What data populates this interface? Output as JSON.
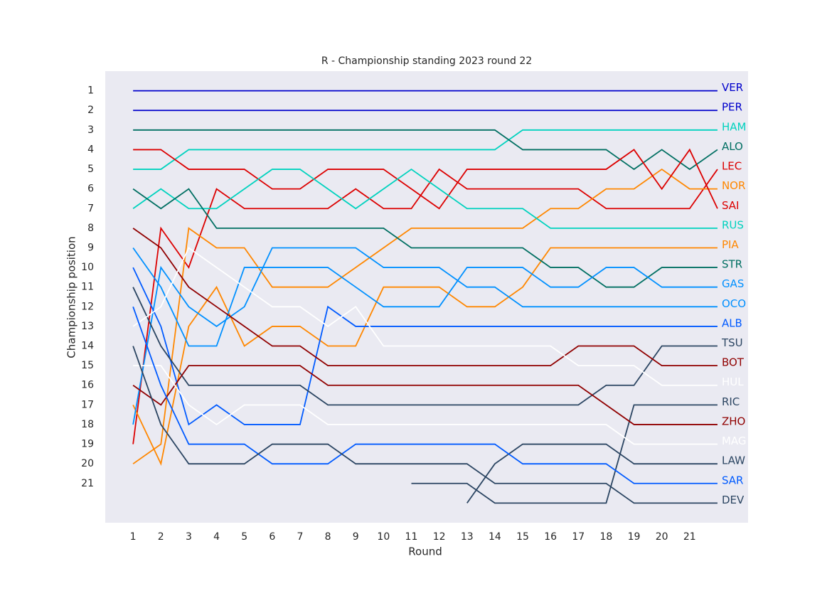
{
  "chart_data": {
    "type": "line",
    "title": "R - Championship standing 2023 round 22",
    "xlabel": "Round",
    "ylabel": "Championship position",
    "x": [
      1,
      2,
      3,
      4,
      5,
      6,
      7,
      8,
      9,
      10,
      11,
      12,
      13,
      14,
      15,
      16,
      17,
      18,
      19,
      20,
      21,
      22
    ],
    "xlim": [
      0,
      23.1
    ],
    "ylim": [
      23,
      0
    ],
    "xticks": [
      1,
      2,
      3,
      4,
      5,
      6,
      7,
      8,
      9,
      10,
      11,
      12,
      13,
      14,
      15,
      16,
      17,
      18,
      19,
      20,
      21
    ],
    "yticks": [
      1,
      2,
      3,
      4,
      5,
      6,
      7,
      8,
      9,
      10,
      11,
      12,
      13,
      14,
      15,
      16,
      17,
      18,
      19,
      20,
      21
    ],
    "grid": false,
    "background": "#eaeaf2",
    "series": [
      {
        "name": "VER",
        "color": "#0000cc",
        "values": [
          1,
          1,
          1,
          1,
          1,
          1,
          1,
          1,
          1,
          1,
          1,
          1,
          1,
          1,
          1,
          1,
          1,
          1,
          1,
          1,
          1,
          1
        ]
      },
      {
        "name": "PER",
        "color": "#0000cc",
        "values": [
          2,
          2,
          2,
          2,
          2,
          2,
          2,
          2,
          2,
          2,
          2,
          2,
          2,
          2,
          2,
          2,
          2,
          2,
          2,
          2,
          2,
          2
        ]
      },
      {
        "name": "HAM",
        "color": "#00d2be",
        "values": [
          5,
          5,
          4,
          4,
          4,
          4,
          4,
          4,
          4,
          4,
          4,
          4,
          4,
          4,
          3,
          3,
          3,
          3,
          3,
          3,
          3,
          3
        ]
      },
      {
        "name": "ALO",
        "color": "#006f62",
        "values": [
          3,
          3,
          3,
          3,
          3,
          3,
          3,
          3,
          3,
          3,
          3,
          3,
          3,
          3,
          4,
          4,
          4,
          4,
          5,
          4,
          5,
          4
        ]
      },
      {
        "name": "LEC",
        "color": "#dc0000",
        "values": [
          19,
          8,
          10,
          6,
          7,
          7,
          7,
          7,
          6,
          7,
          7,
          5,
          6,
          6,
          6,
          6,
          6,
          7,
          7,
          7,
          7,
          5
        ]
      },
      {
        "name": "NOR",
        "color": "#ff8700",
        "values": [
          20,
          19,
          8,
          9,
          9,
          11,
          11,
          11,
          10,
          9,
          8,
          8,
          8,
          8,
          8,
          7,
          7,
          6,
          6,
          5,
          6,
          6
        ]
      },
      {
        "name": "SAI",
        "color": "#dc0000",
        "values": [
          4,
          4,
          5,
          5,
          5,
          6,
          6,
          5,
          5,
          5,
          6,
          7,
          5,
          5,
          5,
          5,
          5,
          5,
          4,
          6,
          4,
          7
        ]
      },
      {
        "name": "RUS",
        "color": "#00d2be",
        "values": [
          7,
          6,
          7,
          7,
          6,
          5,
          5,
          6,
          7,
          6,
          5,
          6,
          7,
          7,
          7,
          8,
          8,
          8,
          8,
          8,
          8,
          8
        ]
      },
      {
        "name": "PIA",
        "color": "#ff8700",
        "values": [
          17,
          20,
          13,
          11,
          14,
          13,
          13,
          14,
          14,
          11,
          11,
          11,
          12,
          12,
          11,
          9,
          9,
          9,
          9,
          9,
          9,
          9
        ]
      },
      {
        "name": "STR",
        "color": "#006f62",
        "values": [
          6,
          7,
          6,
          8,
          8,
          8,
          8,
          8,
          8,
          8,
          9,
          9,
          9,
          9,
          9,
          10,
          10,
          11,
          11,
          10,
          10,
          10
        ]
      },
      {
        "name": "GAS",
        "color": "#0090ff",
        "values": [
          9,
          11,
          14,
          14,
          10,
          10,
          10,
          10,
          11,
          12,
          12,
          12,
          10,
          10,
          10,
          11,
          11,
          10,
          10,
          11,
          11,
          11
        ]
      },
      {
        "name": "OCO",
        "color": "#0090ff",
        "values": [
          18,
          10,
          12,
          13,
          12,
          9,
          9,
          9,
          9,
          10,
          10,
          10,
          11,
          11,
          12,
          12,
          12,
          12,
          12,
          12,
          12,
          12
        ]
      },
      {
        "name": "ALB",
        "color": "#005aff",
        "values": [
          10,
          13,
          18,
          17,
          18,
          18,
          18,
          12,
          13,
          13,
          13,
          13,
          13,
          13,
          13,
          13,
          13,
          13,
          13,
          13,
          13,
          13
        ]
      },
      {
        "name": "TSU",
        "color": "#2b4562",
        "values": [
          11,
          14,
          16,
          16,
          16,
          16,
          16,
          17,
          17,
          17,
          17,
          17,
          17,
          17,
          17,
          17,
          17,
          16,
          16,
          14,
          14,
          14
        ]
      },
      {
        "name": "BOT",
        "color": "#900000",
        "values": [
          8,
          9,
          11,
          12,
          13,
          14,
          14,
          15,
          15,
          15,
          15,
          15,
          15,
          15,
          15,
          15,
          14,
          14,
          14,
          15,
          15,
          15
        ]
      },
      {
        "name": "HUL",
        "color": "#ffffff",
        "values": [
          13,
          12,
          9,
          10,
          11,
          12,
          12,
          13,
          12,
          14,
          14,
          14,
          14,
          14,
          14,
          14,
          15,
          15,
          15,
          16,
          16,
          16
        ]
      },
      {
        "name": "RIC",
        "color": "#2b4562",
        "values": [
          null,
          null,
          null,
          null,
          null,
          null,
          null,
          null,
          null,
          null,
          21,
          21,
          21,
          22,
          22,
          22,
          22,
          22,
          17,
          17,
          17,
          17
        ]
      },
      {
        "name": "ZHO",
        "color": "#900000",
        "values": [
          16,
          17,
          15,
          15,
          15,
          15,
          15,
          16,
          16,
          16,
          16,
          16,
          16,
          16,
          16,
          16,
          16,
          17,
          18,
          18,
          18,
          18
        ]
      },
      {
        "name": "MAG",
        "color": "#ffffff",
        "values": [
          15,
          15,
          17,
          18,
          17,
          17,
          17,
          18,
          18,
          18,
          18,
          18,
          18,
          18,
          18,
          18,
          18,
          18,
          19,
          19,
          19,
          19
        ]
      },
      {
        "name": "LAW",
        "color": "#2b4562",
        "values": [
          null,
          null,
          null,
          null,
          null,
          null,
          null,
          null,
          null,
          null,
          null,
          null,
          22,
          20,
          19,
          19,
          19,
          19,
          20,
          20,
          20,
          20
        ]
      },
      {
        "name": "SAR",
        "color": "#005aff",
        "values": [
          12,
          16,
          19,
          19,
          19,
          20,
          20,
          20,
          19,
          19,
          19,
          19,
          19,
          19,
          20,
          20,
          20,
          20,
          21,
          21,
          21,
          21
        ]
      },
      {
        "name": "DEV",
        "color": "#2b4562",
        "values": [
          14,
          18,
          20,
          20,
          20,
          19,
          19,
          19,
          20,
          20,
          20,
          20,
          20,
          21,
          21,
          21,
          21,
          21,
          22,
          22,
          22,
          22
        ]
      }
    ]
  }
}
